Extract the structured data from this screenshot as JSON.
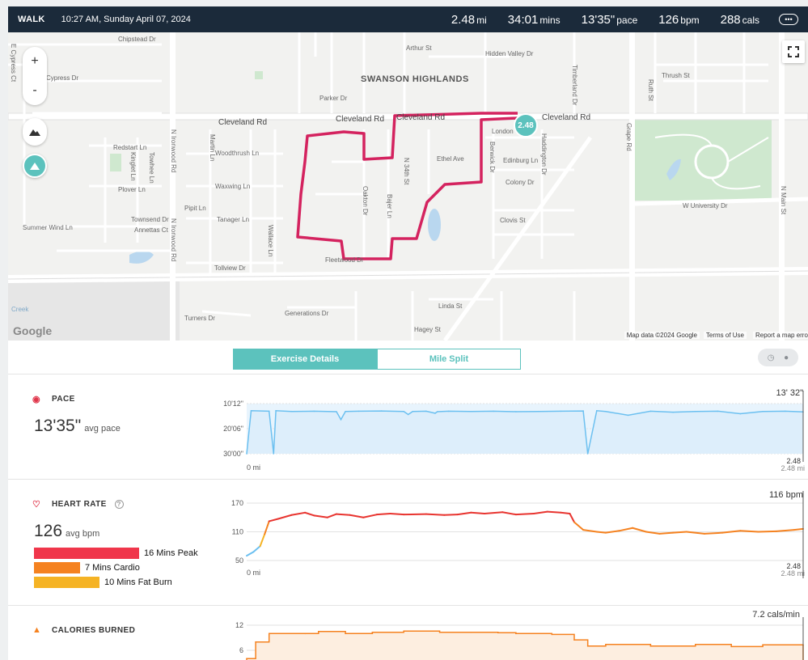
{
  "header": {
    "activity": "WALK",
    "datetime": "10:27 AM, Sunday April 07, 2024",
    "distance": {
      "value": "2.48",
      "unit": "mi"
    },
    "duration": {
      "value": "34:01",
      "unit": "mins"
    },
    "pace": {
      "value": "13'35\"",
      "unit": "pace"
    },
    "heart_rate": {
      "value": "126",
      "unit": "bpm"
    },
    "calories": {
      "value": "288",
      "unit": "cals"
    },
    "more_icon": "ellipsis-icon"
  },
  "map": {
    "neighborhood": "SWANSON HIGHLANDS",
    "marker_label": "2.48",
    "route_color": "#d4235f",
    "zoom_in": "+",
    "zoom_out": "-",
    "google": "Google",
    "map_data": "Map data ©2024 Google",
    "terms": "Terms of Use",
    "report": "Report a map error",
    "streets": {
      "chipstead": "Chipstead Dr",
      "cypress": "Cypress Dr",
      "e_cypress": "E Cypress Ct",
      "arthur": "Arthur St",
      "hidden_valley": "Hidden Valley Dr",
      "parker": "Parker Dr",
      "cleveland_w": "Cleveland Rd",
      "cleveland_mid": "Cleveland Rd",
      "cleveland_route": "Cleveland Rd",
      "cleveland_e": "Cleveland Rd",
      "london": "London",
      "redstart": "Redstart Ln",
      "kinglet": "Kinglet Ln",
      "towhee": "Towhee Ln",
      "plover": "Plover Ln",
      "martin": "Martin Ln",
      "woodthrush": "Woodthrush Ln",
      "waxwing": "Waxwing Ln",
      "pipit": "Pipit Ln",
      "tanager": "Tanager Ln",
      "townsend": "Townsend Dr",
      "annettas": "Annettas Ct",
      "summerwind": "Summer Wind Ln",
      "tollview": "Tollview Dr",
      "fleetwood": "Fleetwood Dr",
      "generations": "Generations Dr",
      "turners": "Turners Dr",
      "linda": "Linda St",
      "hagey": "Hagey St",
      "ethel": "Ethel Ave",
      "edinburg": "Edinburg Ln",
      "colony": "Colony Dr",
      "clovis": "Clovis St",
      "thrush": "Thrush St",
      "grape": "Grape Rd",
      "n_main": "N Main St",
      "w_university": "W University Dr",
      "ironwood1": "N Ironwood Rd",
      "ironwood2": "N Ironwood Rd",
      "oakton": "Oakton Dr",
      "bajer": "Bajer Ln",
      "n34": "N 34th St",
      "berwick": "Berwick Dr",
      "haddington": "Haddington Dr",
      "timberland": "Timberland Dr",
      "ruth": "Ruth St",
      "wallace": "Wallace Ln",
      "creek": "Creek"
    }
  },
  "tabs": {
    "exercise": "Exercise Details",
    "mile_split": "Mile Split"
  },
  "pace": {
    "title": "PACE",
    "avg": "13'35\"",
    "avg_label": "avg pace",
    "current": "13' 32\"",
    "y_ticks": [
      "10'12\"",
      "20'06\"",
      "30'00\""
    ],
    "x_start": "0 mi",
    "x_end": "2.48 mi",
    "cursor_label": "2.48"
  },
  "heart_rate": {
    "title": "HEART RATE",
    "info": "?",
    "avg": "126",
    "avg_label": "avg bpm",
    "current": "116 bpm",
    "y_ticks": [
      "170",
      "110",
      "50"
    ],
    "x_start": "0 mi",
    "x_end": "2.48 mi",
    "cursor_label": "2.48",
    "zones": [
      {
        "label": "16 Mins Peak",
        "minutes": 16,
        "color": "#f0364b"
      },
      {
        "label": "7 Mins Cardio",
        "minutes": 7,
        "color": "#f58220"
      },
      {
        "label": "10 Mins Fat Burn",
        "minutes": 10,
        "color": "#f5b324"
      }
    ]
  },
  "calories": {
    "title": "CALORIES BURNED",
    "current": "7.2 cals/min",
    "y_ticks": [
      "12",
      "6"
    ]
  },
  "chart_data": [
    {
      "type": "area",
      "title": "PACE",
      "xlabel": "mi",
      "x_range": [
        0,
        2.48
      ],
      "ylim": [
        10.2,
        30.0
      ],
      "y_inverted": true,
      "y_unit": "min/mi",
      "x": [
        0.0,
        0.02,
        0.1,
        0.12,
        0.13,
        0.2,
        0.3,
        0.4,
        0.42,
        0.44,
        0.5,
        0.6,
        0.7,
        0.72,
        0.74,
        0.8,
        0.84,
        0.85,
        0.9,
        1.0,
        1.1,
        1.2,
        1.3,
        1.4,
        1.5,
        1.52,
        1.56,
        1.6,
        1.7,
        1.8,
        1.9,
        2.0,
        2.1,
        2.2,
        2.3,
        2.4,
        2.48
      ],
      "series": [
        {
          "values": [
            30.0,
            13.0,
            13.2,
            30.0,
            13.0,
            13.3,
            13.2,
            13.4,
            16.5,
            13.3,
            13.2,
            13.1,
            13.3,
            14.5,
            13.3,
            13.2,
            14.0,
            13.4,
            13.2,
            13.3,
            13.2,
            13.4,
            13.3,
            13.2,
            13.1,
            30.0,
            13.0,
            13.3,
            14.8,
            13.2,
            13.6,
            13.3,
            13.2,
            14.2,
            13.3,
            13.2,
            13.5
          ]
        }
      ]
    },
    {
      "type": "line",
      "title": "HEART RATE",
      "xlabel": "mi",
      "x_range": [
        0,
        2.48
      ],
      "ylim": [
        50,
        175
      ],
      "y_unit": "bpm",
      "x": [
        0.0,
        0.03,
        0.06,
        0.08,
        0.1,
        0.14,
        0.2,
        0.26,
        0.3,
        0.36,
        0.4,
        0.46,
        0.52,
        0.58,
        0.64,
        0.7,
        0.8,
        0.88,
        0.94,
        1.0,
        1.06,
        1.14,
        1.2,
        1.28,
        1.34,
        1.4,
        1.44,
        1.46,
        1.5,
        1.56,
        1.6,
        1.66,
        1.72,
        1.78,
        1.84,
        1.9,
        1.96,
        2.04,
        2.12,
        2.2,
        2.28,
        2.36,
        2.44,
        2.48
      ],
      "series": [
        {
          "values": [
            60,
            68,
            80,
            105,
            132,
            137,
            145,
            150,
            144,
            140,
            147,
            145,
            140,
            146,
            148,
            146,
            147,
            145,
            146,
            150,
            148,
            151,
            146,
            148,
            152,
            150,
            148,
            130,
            114,
            110,
            108,
            112,
            118,
            110,
            106,
            108,
            110,
            106,
            108,
            112,
            110,
            111,
            114,
            116
          ]
        }
      ]
    },
    {
      "type": "area",
      "title": "CALORIES BURNED",
      "xlabel": "mi",
      "x_range": [
        0,
        2.48
      ],
      "y_unit": "cals/min",
      "x": [
        0.0,
        0.04,
        0.1,
        0.26,
        0.32,
        0.44,
        0.56,
        0.7,
        0.86,
        1.0,
        1.12,
        1.2,
        1.36,
        1.46,
        1.52,
        1.6,
        1.8,
        2.0,
        2.16,
        2.3,
        2.48
      ],
      "series": [
        {
          "values": [
            4.0,
            8.0,
            10.0,
            10.0,
            10.5,
            10.0,
            10.3,
            10.6,
            10.3,
            10.3,
            10.2,
            10.0,
            9.8,
            8.5,
            7.0,
            7.4,
            7.0,
            7.4,
            6.9,
            7.3,
            7.2
          ]
        }
      ]
    }
  ]
}
